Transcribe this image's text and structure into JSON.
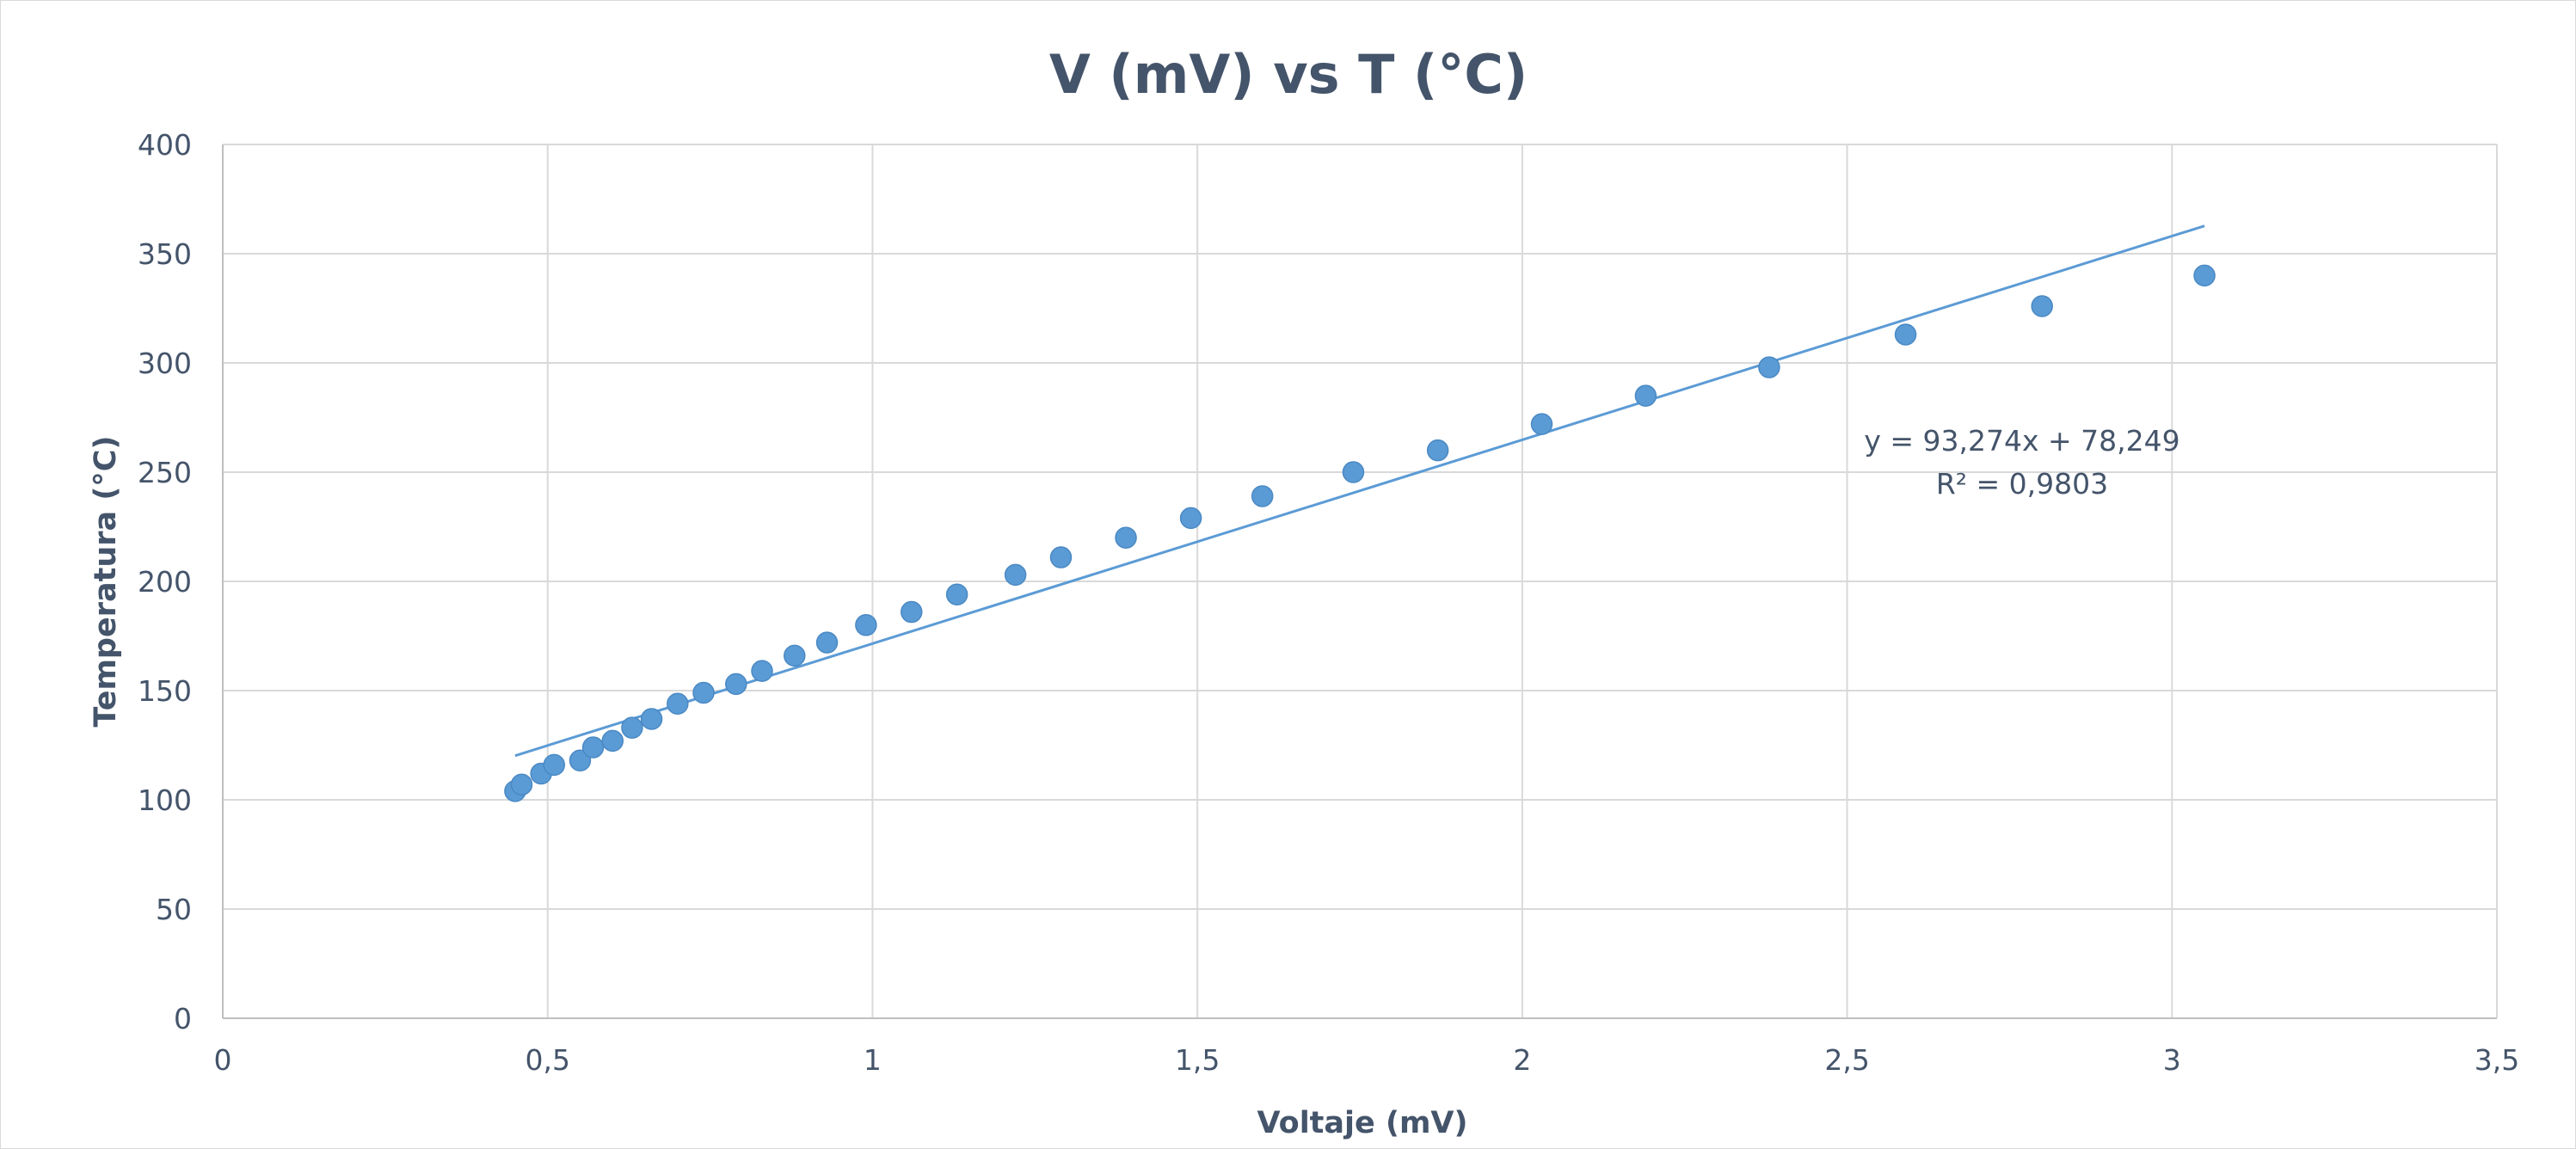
{
  "chart_data": {
    "type": "scatter",
    "title": "V (mV) vs T (°C)",
    "xlabel": "Voltaje (mV)",
    "ylabel": "Temperatura  (°C)",
    "xlim": [
      0,
      3.5
    ],
    "ylim": [
      0,
      400
    ],
    "x_ticks": [
      0,
      0.5,
      1,
      1.5,
      2,
      2.5,
      3,
      3.5
    ],
    "x_tick_labels": [
      "0",
      "0,5",
      "1",
      "1,5",
      "2",
      "2,5",
      "3",
      "3,5"
    ],
    "y_ticks": [
      0,
      50,
      100,
      150,
      200,
      250,
      300,
      350,
      400
    ],
    "y_tick_labels": [
      "0",
      "50",
      "100",
      "150",
      "200",
      "250",
      "300",
      "350",
      "400"
    ],
    "grid": true,
    "legend": "none",
    "marker_color": "#5b9bd5",
    "trendline_color": "#5b9bd5",
    "series": [
      {
        "x": [
          0.45,
          0.46,
          0.49,
          0.51,
          0.55,
          0.57,
          0.6,
          0.63,
          0.66,
          0.7,
          0.74,
          0.79,
          0.83,
          0.88,
          0.93,
          0.99,
          1.06,
          1.13,
          1.22,
          1.29,
          1.39,
          1.49,
          1.6,
          1.74,
          1.87,
          2.03,
          2.19,
          2.38,
          2.59,
          2.8,
          3.05
        ],
        "y": [
          104,
          107,
          112,
          116,
          118,
          124,
          127,
          133,
          137,
          144,
          149,
          153,
          159,
          166,
          172,
          180,
          186,
          194,
          203,
          211,
          220,
          229,
          239,
          250,
          260,
          272,
          285,
          298,
          313,
          326,
          340
        ]
      }
    ],
    "trendline": {
      "type": "linear",
      "slope": 93.274,
      "intercept": 78.249,
      "x_range": [
        0.45,
        3.05
      ],
      "equation_label": "y = 93,274x + 78,249",
      "r2_label": "R² = 0,9803"
    }
  }
}
